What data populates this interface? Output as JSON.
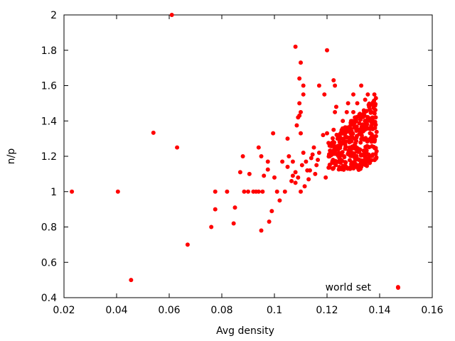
{
  "chart_data": {
    "type": "scatter",
    "xlabel": "Avg density",
    "ylabel": "n/p",
    "xlim": [
      0.02,
      0.16
    ],
    "ylim": [
      0.4,
      2.0
    ],
    "xticks": [
      "0.02",
      "0.04",
      "0.06",
      "0.08",
      "0.1",
      "0.12",
      "0.14",
      "0.16"
    ],
    "yticks": [
      "0.4",
      "0.6",
      "0.8",
      "1",
      "1.2",
      "1.4",
      "1.6",
      "1.8",
      "2"
    ],
    "grid": false,
    "legend_position": "bottom-right",
    "series": [
      {
        "name": "world set",
        "color": "#ff0000",
        "marker": "filled-circle",
        "points": [
          [
            0.023,
            1.0
          ],
          [
            0.0405,
            1.0
          ],
          [
            0.0455,
            0.5
          ],
          [
            0.054,
            1.333
          ],
          [
            0.061,
            2.0
          ],
          [
            0.063,
            1.25
          ],
          [
            0.067,
            0.7
          ],
          [
            0.076,
            0.8
          ],
          [
            0.0775,
            0.9
          ],
          [
            0.0775,
            1.0
          ],
          [
            0.082,
            1.0
          ],
          [
            0.0845,
            0.82
          ],
          [
            0.085,
            0.91
          ],
          [
            0.087,
            1.11
          ],
          [
            0.088,
            1.2
          ],
          [
            0.0885,
            1.0
          ],
          [
            0.09,
            1.0
          ],
          [
            0.0905,
            1.1
          ],
          [
            0.092,
            1.0
          ],
          [
            0.093,
            1.0
          ],
          [
            0.094,
            1.0
          ],
          [
            0.094,
            1.25
          ],
          [
            0.095,
            1.2
          ],
          [
            0.095,
            0.78
          ],
          [
            0.0955,
            1.0
          ],
          [
            0.096,
            1.09
          ],
          [
            0.0975,
            1.17
          ],
          [
            0.0975,
            1.125
          ],
          [
            0.098,
            0.83
          ],
          [
            0.099,
            0.89
          ],
          [
            0.0995,
            1.33
          ],
          [
            0.1,
            1.08
          ],
          [
            0.101,
            1.0
          ],
          [
            0.102,
            0.95
          ],
          [
            0.103,
            1.17
          ],
          [
            0.104,
            1.0
          ],
          [
            0.105,
            1.14
          ],
          [
            0.1055,
            1.2
          ],
          [
            0.105,
            1.3
          ],
          [
            0.1065,
            1.06
          ],
          [
            0.107,
            1.17
          ],
          [
            0.107,
            1.09
          ],
          [
            0.108,
            1.05
          ],
          [
            0.108,
            1.11
          ],
          [
            0.109,
            1.08
          ],
          [
            0.11,
            1.0
          ],
          [
            0.1105,
            1.15
          ],
          [
            0.108,
            1.82
          ],
          [
            0.1095,
            1.64
          ],
          [
            0.1095,
            1.5
          ],
          [
            0.11,
            1.73
          ],
          [
            0.111,
            1.55
          ],
          [
            0.111,
            1.6
          ],
          [
            0.1085,
            1.375
          ],
          [
            0.1095,
            1.43
          ],
          [
            0.11,
            1.45
          ],
          [
            0.11,
            1.33
          ],
          [
            0.109,
            1.42
          ],
          [
            0.111,
            1.22
          ],
          [
            0.112,
            1.17
          ],
          [
            0.1125,
            1.12
          ],
          [
            0.113,
            1.07
          ],
          [
            0.1115,
            1.03
          ],
          [
            0.1135,
            1.12
          ],
          [
            0.114,
            1.19
          ],
          [
            0.1145,
            1.21
          ],
          [
            0.115,
            1.25
          ],
          [
            0.1155,
            1.1
          ],
          [
            0.116,
            1.15
          ],
          [
            0.1165,
            1.18
          ],
          [
            0.117,
            1.22
          ],
          [
            0.117,
            1.6
          ],
          [
            0.1185,
            1.32
          ],
          [
            0.119,
            1.55
          ],
          [
            0.1195,
            1.08
          ],
          [
            0.12,
            1.8
          ],
          [
            0.12,
            1.33
          ],
          [
            0.121,
            1.26
          ],
          [
            0.121,
            1.2
          ],
          [
            0.1215,
            1.23
          ],
          [
            0.122,
            1.17
          ],
          [
            0.1225,
            1.35
          ],
          [
            0.1225,
            1.63
          ],
          [
            0.123,
            1.6
          ],
          [
            0.1235,
            1.48
          ],
          [
            0.123,
            1.45
          ],
          [
            0.124,
            1.3
          ],
          [
            0.1245,
            1.22
          ],
          [
            0.125,
            1.27
          ],
          [
            0.1255,
            1.34
          ],
          [
            0.126,
            1.4
          ],
          [
            0.1265,
            1.2
          ],
          [
            0.1265,
            1.13
          ],
          [
            0.127,
            1.31
          ],
          [
            0.1275,
            1.45
          ],
          [
            0.128,
            1.5
          ],
          [
            0.128,
            1.36
          ],
          [
            0.1285,
            1.25
          ],
          [
            0.129,
            1.33
          ],
          [
            0.1295,
            1.4
          ],
          [
            0.13,
            1.45
          ],
          [
            0.13,
            1.55
          ],
          [
            0.1305,
            1.3
          ],
          [
            0.131,
            1.42
          ],
          [
            0.1315,
            1.5
          ],
          [
            0.132,
            1.35
          ],
          [
            0.1325,
            1.44
          ],
          [
            0.133,
            1.6
          ],
          [
            0.1335,
            1.38
          ],
          [
            0.134,
            1.46
          ],
          [
            0.1345,
            1.52
          ],
          [
            0.135,
            1.4
          ],
          [
            0.1355,
            1.55
          ],
          [
            0.136,
            1.48
          ],
          [
            0.1365,
            1.3
          ],
          [
            0.137,
            1.45
          ],
          [
            0.1375,
            1.5
          ],
          [
            0.138,
            1.55
          ],
          [
            0.1385,
            1.42
          ],
          [
            0.147,
            0.46
          ]
        ]
      }
    ]
  }
}
